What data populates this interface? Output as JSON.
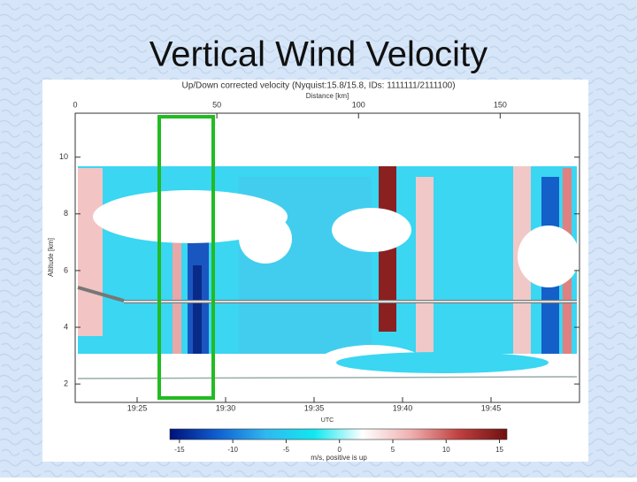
{
  "slide_title": "Vertical Wind Velocity",
  "chart_data": {
    "type": "curtain",
    "title": "Up/Down corrected velocity (Nyquist:15.8/15.8, IDs: 1111111/2111100)",
    "x2label": "Distance [km]",
    "x2lim": [
      0,
      178
    ],
    "x2ticks": [
      0,
      50,
      100,
      150
    ],
    "xlabel": "UTC",
    "time_ticks": [
      "19:25",
      "19:30",
      "19:35",
      "19:40",
      "19:45"
    ],
    "ylabel": "Altitude [km]",
    "ylim": [
      1.35,
      11.55
    ],
    "yticks": [
      2,
      4,
      6,
      8,
      10
    ],
    "colorbar": {
      "label": "m/s, positive is up",
      "lim": [
        -15.9,
        15.7
      ],
      "ticks": [
        -15,
        -10,
        -5,
        0,
        5,
        10,
        15
      ],
      "colors": [
        "#00107a",
        "#1060d0",
        "#30b8f0",
        "#10e8f0",
        "#ffffff",
        "#f0b0b0",
        "#c04040",
        "#701010"
      ]
    }
  }
}
